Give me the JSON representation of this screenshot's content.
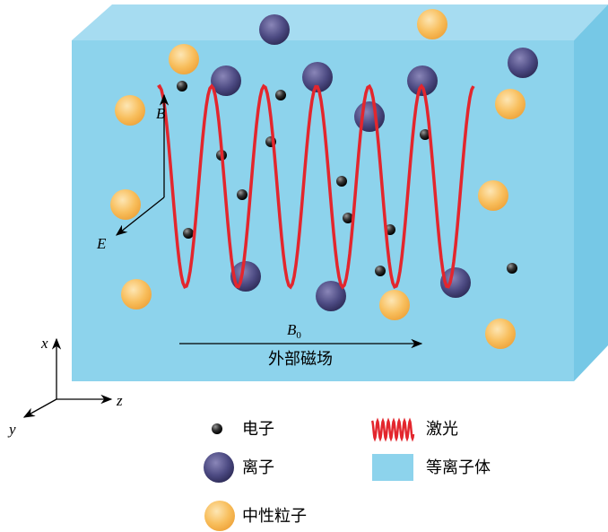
{
  "field_labels": {
    "magnetic": "B",
    "electric": "E"
  },
  "external_field": {
    "symbol": "B",
    "subscript": "0",
    "label": "外部磁场"
  },
  "axes": {
    "x": "x",
    "y": "y",
    "z": "z"
  },
  "legend": {
    "electron": "电子",
    "laser": "激光",
    "ion": "离子",
    "plasma": "等离子体",
    "neutral": "中性粒子"
  }
}
